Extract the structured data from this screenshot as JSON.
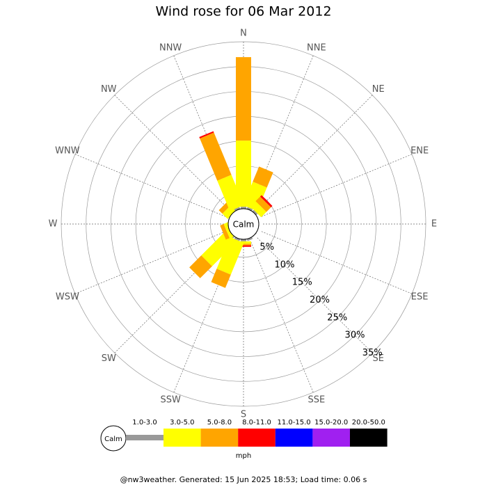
{
  "chart_data": {
    "type": "windrose",
    "title": "Wind rose for 06 Mar 2012",
    "categories": [
      "N",
      "NNE",
      "NE",
      "ENE",
      "E",
      "ESE",
      "SE",
      "SSE",
      "S",
      "SSW",
      "SW",
      "WSW",
      "W",
      "WNW",
      "NW",
      "NNW"
    ],
    "series": [
      {
        "name": "1.0-3.0",
        "color": "#999999",
        "values": [
          1.8,
          1.8,
          1.8,
          0,
          0,
          0,
          1.5,
          1.8,
          1.8,
          1.8,
          1.8,
          1.0,
          0.5,
          0,
          1.3,
          1.8
        ]
      },
      {
        "name": "3.0-5.0",
        "color": "#ffff00",
        "values": [
          13.3,
          5.1,
          1.5,
          0,
          0,
          0,
          0,
          0,
          0.5,
          6.9,
          7.0,
          1.0,
          0,
          0,
          1.5,
          6.6
        ]
      },
      {
        "name": "5.0-8.0",
        "color": "#ffa500",
        "values": [
          16.8,
          3.3,
          1.3,
          0,
          0,
          0,
          0,
          0,
          0.3,
          2.9,
          3.4,
          0.8,
          0,
          0,
          1.0,
          9.2
        ]
      },
      {
        "name": "8.0-11.0",
        "color": "#ff0000",
        "values": [
          0,
          0,
          0.4,
          0,
          0,
          0,
          0,
          0,
          0.3,
          0,
          0,
          0,
          0,
          0,
          0,
          0.3
        ]
      },
      {
        "name": "11.0-15.0",
        "color": "#0000ff",
        "values": [
          0,
          0,
          0,
          0,
          0,
          0,
          0,
          0,
          0,
          0,
          0,
          0,
          0,
          0,
          0,
          0
        ]
      },
      {
        "name": "15.0-20.0",
        "color": "#a020f0",
        "values": [
          0,
          0,
          0,
          0,
          0,
          0,
          0,
          0,
          0,
          0,
          0,
          0,
          0,
          0,
          0,
          0
        ]
      },
      {
        "name": "20.0-50.0",
        "color": "#000000",
        "values": [
          0,
          0,
          0,
          0,
          0,
          0,
          0,
          0,
          0,
          0,
          0,
          0,
          0,
          0,
          0,
          0
        ]
      }
    ],
    "rlim": [
      0,
      35
    ],
    "rticks": [
      {
        "value": 5,
        "label": "5%"
      },
      {
        "value": 10,
        "label": "10%"
      },
      {
        "value": 15,
        "label": "15%"
      },
      {
        "value": 20,
        "label": "20%"
      },
      {
        "value": 25,
        "label": "25%"
      },
      {
        "value": 30,
        "label": "30%"
      },
      {
        "value": 35,
        "label": "35%"
      }
    ],
    "calm_label": "Calm",
    "legend_unit": "mph",
    "footer": "@nw3weather. Generated: 15 Jun 2025 18:53; Load time: 0.06 s"
  }
}
